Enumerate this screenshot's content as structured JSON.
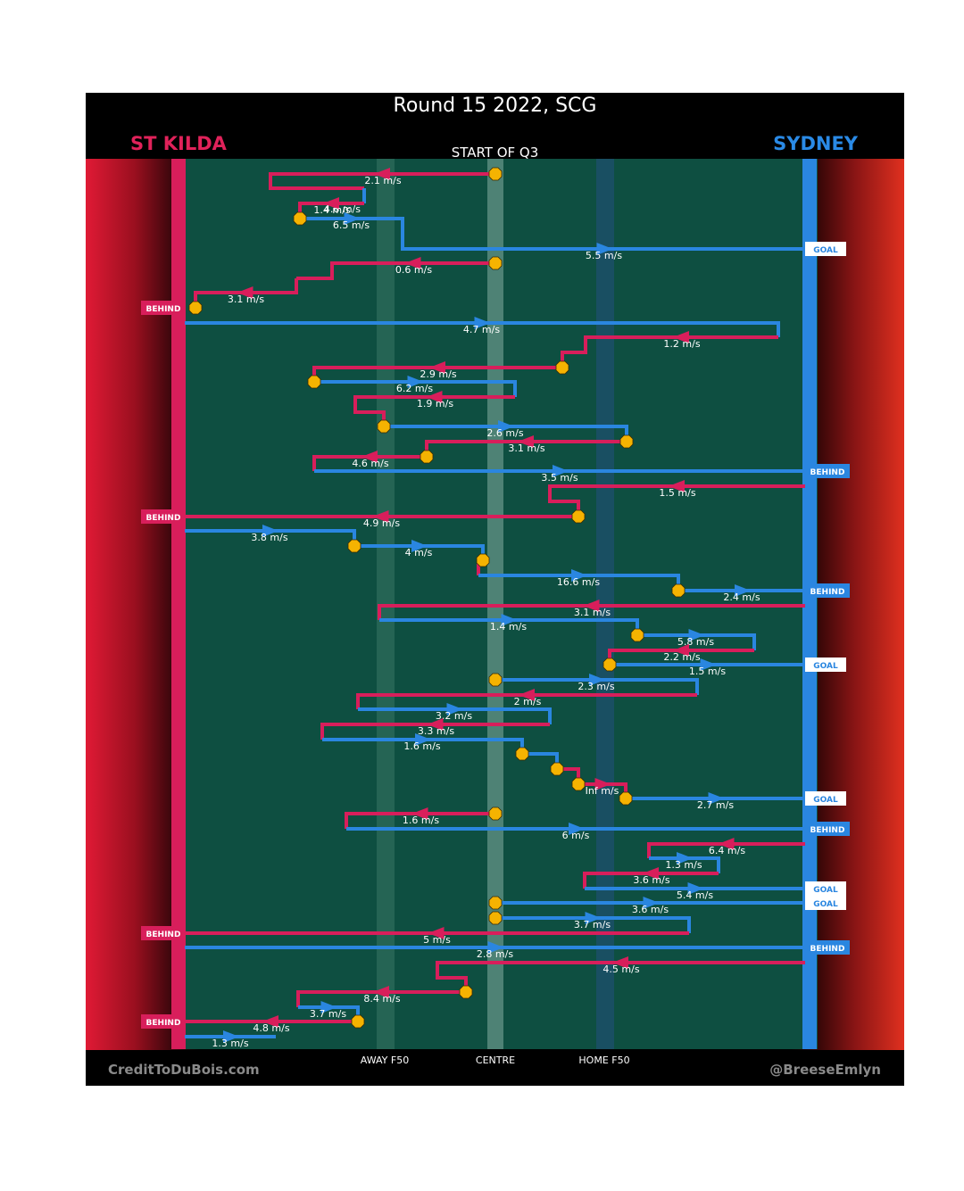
{
  "title": "Round 15 2022, SCG",
  "subtitle": "START OF Q3",
  "teams": {
    "left": {
      "name": "ST KILDA",
      "color": "#e0225a"
    },
    "right": {
      "name": "SYDNEY",
      "color": "#2a8ae6"
    }
  },
  "zones": {
    "away": "AWAY F50",
    "centre": "CENTRE",
    "home": "HOME F50"
  },
  "credits": {
    "left": "CreditToDuBois.com",
    "right": "@BreeseEmlyn"
  },
  "colors": {
    "stkilda": "#d81e5b",
    "sydney": "#2a86e0",
    "field": "#0e4f41",
    "marker": "#f5b301"
  },
  "chart_data": {
    "type": "chain",
    "x_axis": {
      "ticks": [
        "AWAY F50",
        "CENTRE",
        "HOME F50"
      ]
    },
    "segments": [
      {
        "team": "stkilda",
        "speed": "2.1 m/s",
        "path": [
          [
            555,
            195
          ],
          [
            303,
            195
          ],
          [
            303,
            211
          ],
          [
            408,
            211
          ]
        ],
        "start_marker": true
      },
      {
        "team": "sydney",
        "speed": "4.6 m/s",
        "path": [
          [
            408,
            211
          ],
          [
            408,
            228
          ]
        ]
      },
      {
        "team": "stkilda",
        "speed": "1.4 m/s",
        "path": [
          [
            408,
            228
          ],
          [
            336,
            228
          ],
          [
            336,
            245
          ]
        ]
      },
      {
        "team": "sydney",
        "speed": "6.5 m/s",
        "path": [
          [
            336,
            245
          ],
          [
            451,
            245
          ],
          [
            451,
            262
          ]
        ],
        "start_marker": true
      },
      {
        "team": "sydney",
        "speed": "5.5 m/s",
        "path": [
          [
            451,
            262
          ],
          [
            451,
            279
          ],
          [
            902,
            279
          ]
        ],
        "end_label": "GOAL"
      },
      {
        "team": "stkilda",
        "speed": "0.6 m/s",
        "path": [
          [
            555,
            295
          ],
          [
            372,
            295
          ],
          [
            372,
            312
          ],
          [
            332,
            312
          ]
        ],
        "start_marker": true
      },
      {
        "team": "stkilda",
        "speed": "3.1 m/s",
        "path": [
          [
            332,
            312
          ],
          [
            332,
            328
          ],
          [
            219,
            328
          ],
          [
            219,
            345
          ]
        ],
        "end_label": "BEHIND",
        "end_marker": true
      },
      {
        "team": "sydney",
        "speed": "4.7 m/s",
        "path": [
          [
            207,
            362
          ],
          [
            872,
            362
          ],
          [
            872,
            378
          ]
        ]
      },
      {
        "team": "stkilda",
        "speed": "1.2 m/s",
        "path": [
          [
            872,
            378
          ],
          [
            656,
            378
          ],
          [
            656,
            395
          ],
          [
            630,
            395
          ],
          [
            630,
            412
          ]
        ]
      },
      {
        "team": "stkilda",
        "speed": "2.9 m/s",
        "path": [
          [
            630,
            412
          ],
          [
            352,
            412
          ],
          [
            352,
            428
          ]
        ],
        "start_marker": true
      },
      {
        "team": "sydney",
        "speed": "6.2 m/s",
        "path": [
          [
            352,
            428
          ],
          [
            577,
            428
          ],
          [
            577,
            445
          ]
        ],
        "start_marker": true
      },
      {
        "team": "stkilda",
        "speed": "1.9 m/s",
        "path": [
          [
            577,
            445
          ],
          [
            398,
            445
          ],
          [
            398,
            462
          ],
          [
            430,
            462
          ],
          [
            430,
            478
          ]
        ]
      },
      {
        "team": "sydney",
        "speed": "2.6 m/s",
        "path": [
          [
            430,
            478
          ],
          [
            702,
            478
          ],
          [
            702,
            495
          ]
        ],
        "start_marker": true
      },
      {
        "team": "stkilda",
        "speed": "3.1 m/s",
        "path": [
          [
            702,
            495
          ],
          [
            478,
            495
          ],
          [
            478,
            512
          ]
        ],
        "start_marker": true
      },
      {
        "team": "stkilda",
        "speed": "4.6 m/s",
        "path": [
          [
            478,
            512
          ],
          [
            352,
            512
          ],
          [
            352,
            528
          ]
        ],
        "start_marker": true
      },
      {
        "team": "sydney",
        "speed": "3.5 m/s",
        "path": [
          [
            352,
            528
          ],
          [
            902,
            528
          ]
        ],
        "end_label": "BEHIND"
      },
      {
        "team": "stkilda",
        "speed": "1.5 m/s",
        "path": [
          [
            902,
            545
          ],
          [
            616,
            545
          ],
          [
            616,
            562
          ],
          [
            648,
            562
          ],
          [
            648,
            579
          ]
        ]
      },
      {
        "team": "stkilda",
        "speed": "4.9 m/s",
        "path": [
          [
            648,
            579
          ],
          [
            207,
            579
          ]
        ],
        "end_label": "BEHIND",
        "start_marker": true
      },
      {
        "team": "sydney",
        "speed": "3.8 m/s",
        "path": [
          [
            207,
            595
          ],
          [
            397,
            595
          ],
          [
            397,
            612
          ]
        ]
      },
      {
        "team": "sydney",
        "speed": "4 m/s",
        "path": [
          [
            397,
            612
          ],
          [
            541,
            612
          ],
          [
            541,
            628
          ]
        ],
        "start_marker": true
      },
      {
        "team": "stkilda",
        "speed": "",
        "path": [
          [
            541,
            628
          ],
          [
            536,
            628
          ],
          [
            536,
            645
          ]
        ],
        "start_marker": true
      },
      {
        "team": "sydney",
        "speed": "16.6 m/s",
        "path": [
          [
            536,
            645
          ],
          [
            760,
            645
          ],
          [
            760,
            662
          ]
        ]
      },
      {
        "team": "sydney",
        "speed": "2.4 m/s",
        "path": [
          [
            760,
            662
          ],
          [
            902,
            662
          ]
        ],
        "end_label": "BEHIND",
        "start_marker": true
      },
      {
        "team": "stkilda",
        "speed": "3.1 m/s",
        "path": [
          [
            902,
            679
          ],
          [
            425,
            679
          ],
          [
            425,
            695
          ]
        ]
      },
      {
        "team": "sydney",
        "speed": "1.4 m/s",
        "path": [
          [
            425,
            695
          ],
          [
            714,
            695
          ],
          [
            714,
            712
          ]
        ]
      },
      {
        "team": "sydney",
        "speed": "5.8 m/s",
        "path": [
          [
            714,
            712
          ],
          [
            845,
            712
          ],
          [
            845,
            729
          ]
        ],
        "start_marker": true
      },
      {
        "team": "stkilda",
        "speed": "2.2 m/s",
        "path": [
          [
            845,
            729
          ],
          [
            683,
            729
          ],
          [
            683,
            745
          ]
        ]
      },
      {
        "team": "sydney",
        "speed": "1.5 m/s",
        "path": [
          [
            683,
            745
          ],
          [
            902,
            745
          ]
        ],
        "end_label": "GOAL",
        "start_marker": true
      },
      {
        "team": "sydney",
        "speed": "2.3 m/s",
        "path": [
          [
            555,
            762
          ],
          [
            781,
            762
          ],
          [
            781,
            779
          ]
        ],
        "start_marker": true
      },
      {
        "team": "stkilda",
        "speed": "2 m/s",
        "path": [
          [
            781,
            779
          ],
          [
            401,
            779
          ],
          [
            401,
            795
          ]
        ]
      },
      {
        "team": "sydney",
        "speed": "3.2 m/s",
        "path": [
          [
            401,
            795
          ],
          [
            616,
            795
          ],
          [
            616,
            812
          ]
        ]
      },
      {
        "team": "stkilda",
        "speed": "3.3 m/s",
        "path": [
          [
            616,
            812
          ],
          [
            361,
            812
          ],
          [
            361,
            829
          ]
        ]
      },
      {
        "team": "sydney",
        "speed": "1.6 m/s",
        "path": [
          [
            361,
            829
          ],
          [
            585,
            829
          ],
          [
            585,
            845
          ]
        ]
      },
      {
        "team": "sydney",
        "speed": "",
        "path": [
          [
            585,
            845
          ],
          [
            624,
            845
          ],
          [
            624,
            862
          ]
        ],
        "start_marker": true
      },
      {
        "team": "stkilda",
        "speed": "",
        "path": [
          [
            624,
            862
          ],
          [
            648,
            862
          ],
          [
            648,
            879
          ]
        ],
        "start_marker": true
      },
      {
        "team": "stkilda",
        "speed": "Inf m/s",
        "path": [
          [
            648,
            879
          ],
          [
            701,
            879
          ],
          [
            701,
            895
          ]
        ],
        "start_marker": true
      },
      {
        "team": "sydney",
        "speed": "2.7 m/s",
        "path": [
          [
            701,
            895
          ],
          [
            902,
            895
          ]
        ],
        "end_label": "GOAL",
        "start_marker": true
      },
      {
        "team": "stkilda",
        "speed": "1.6 m/s",
        "path": [
          [
            555,
            912
          ],
          [
            388,
            912
          ],
          [
            388,
            929
          ]
        ],
        "start_marker": true
      },
      {
        "team": "sydney",
        "speed": "6 m/s",
        "path": [
          [
            388,
            929
          ],
          [
            902,
            929
          ]
        ],
        "end_label": "BEHIND"
      },
      {
        "team": "stkilda",
        "speed": "6.4 m/s",
        "path": [
          [
            902,
            946
          ],
          [
            727,
            946
          ],
          [
            727,
            962
          ]
        ]
      },
      {
        "team": "sydney",
        "speed": "1.3 m/s",
        "path": [
          [
            727,
            962
          ],
          [
            805,
            962
          ],
          [
            805,
            979
          ]
        ]
      },
      {
        "team": "stkilda",
        "speed": "3.6 m/s",
        "path": [
          [
            805,
            979
          ],
          [
            655,
            979
          ],
          [
            655,
            996
          ]
        ]
      },
      {
        "team": "sydney",
        "speed": "5.4 m/s",
        "path": [
          [
            655,
            996
          ],
          [
            902,
            996
          ]
        ],
        "end_label": "GOAL"
      },
      {
        "team": "sydney",
        "speed": "3.6 m/s",
        "path": [
          [
            555,
            1012
          ],
          [
            902,
            1012
          ]
        ],
        "end_label": "GOAL",
        "start_marker": true
      },
      {
        "team": "sydney",
        "speed": "3.7 m/s",
        "path": [
          [
            555,
            1029
          ],
          [
            772,
            1029
          ],
          [
            772,
            1046
          ]
        ],
        "start_marker": true
      },
      {
        "team": "stkilda",
        "speed": "5 m/s",
        "path": [
          [
            772,
            1046
          ],
          [
            207,
            1046
          ]
        ],
        "end_label": "BEHIND"
      },
      {
        "team": "sydney",
        "speed": "2.8 m/s",
        "path": [
          [
            207,
            1062
          ],
          [
            902,
            1062
          ]
        ],
        "end_label": "BEHIND"
      },
      {
        "team": "stkilda",
        "speed": "4.5 m/s",
        "path": [
          [
            902,
            1079
          ],
          [
            490,
            1079
          ],
          [
            490,
            1096
          ],
          [
            522,
            1096
          ],
          [
            522,
            1112
          ]
        ]
      },
      {
        "team": "stkilda",
        "speed": "8.4 m/s",
        "path": [
          [
            522,
            1112
          ],
          [
            334,
            1112
          ],
          [
            334,
            1129
          ]
        ],
        "start_marker": true
      },
      {
        "team": "sydney",
        "speed": "3.7 m/s",
        "path": [
          [
            334,
            1129
          ],
          [
            401,
            1129
          ],
          [
            401,
            1145
          ]
        ]
      },
      {
        "team": "stkilda",
        "speed": "4.8 m/s",
        "path": [
          [
            401,
            1145
          ],
          [
            207,
            1145
          ]
        ],
        "end_label": "BEHIND",
        "start_marker": true
      },
      {
        "team": "sydney",
        "speed": "1.3 m/s",
        "path": [
          [
            207,
            1162
          ],
          [
            309,
            1162
          ]
        ]
      }
    ]
  }
}
